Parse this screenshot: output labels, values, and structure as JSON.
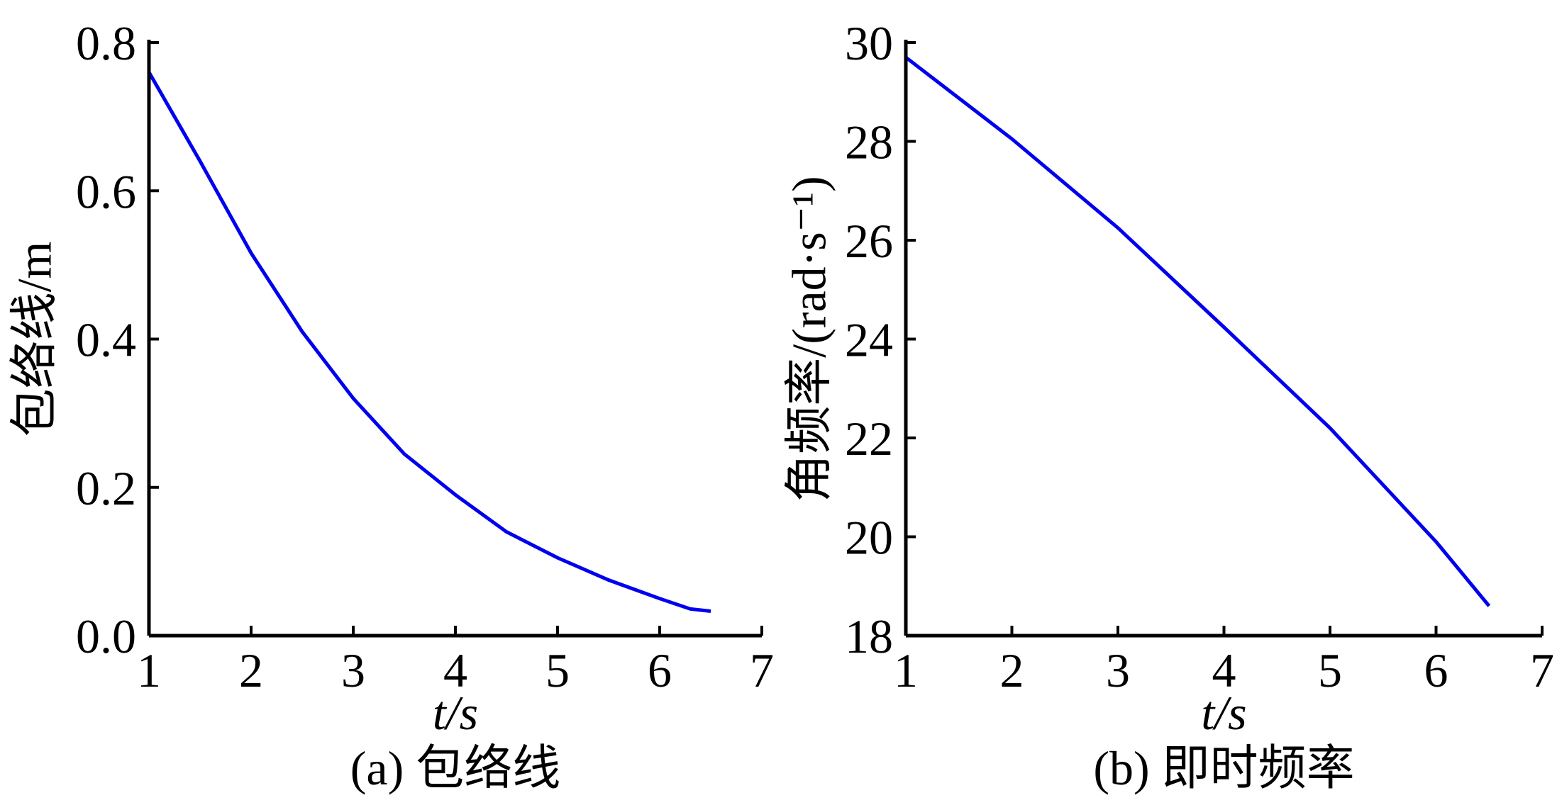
{
  "chart_data": [
    {
      "type": "line",
      "title": "(a) 包络线",
      "x_label": "t/s",
      "y_label": "包络线/m",
      "xlim": [
        1,
        7
      ],
      "xticks": [
        1,
        2,
        3,
        4,
        5,
        6,
        7
      ],
      "ylim": [
        0,
        0.8
      ],
      "yticks": [
        {
          "value": 0,
          "label": "0.0"
        },
        0.2,
        0.4,
        0.6,
        0.8
      ],
      "grid": false,
      "series": [
        {
          "color": "#0000ee",
          "x": [
            1,
            1.5,
            2,
            2.5,
            3,
            3.5,
            4,
            4.5,
            5,
            5.5,
            6,
            6.3,
            6.5
          ],
          "values": [
            0.76,
            0.64,
            0.516,
            0.41,
            0.32,
            0.245,
            0.19,
            0.14,
            0.105,
            0.075,
            0.05,
            0.036,
            0.033
          ]
        }
      ]
    },
    {
      "type": "line",
      "title": "(b) 即时频率",
      "x_label": "t/s",
      "y_label": "角频率/(rad·s⁻¹)",
      "xlim": [
        1,
        7
      ],
      "xticks": [
        1,
        2,
        3,
        4,
        5,
        6,
        7
      ],
      "ylim": [
        18,
        30
      ],
      "yticks": [
        18,
        20,
        22,
        24,
        26,
        28,
        30
      ],
      "grid": false,
      "series": [
        {
          "color": "#0000ee",
          "x": [
            1,
            2,
            3,
            4,
            5,
            6,
            6.5
          ],
          "values": [
            29.7,
            28.05,
            26.25,
            24.24,
            22.2,
            19.9,
            18.6
          ]
        }
      ]
    }
  ]
}
